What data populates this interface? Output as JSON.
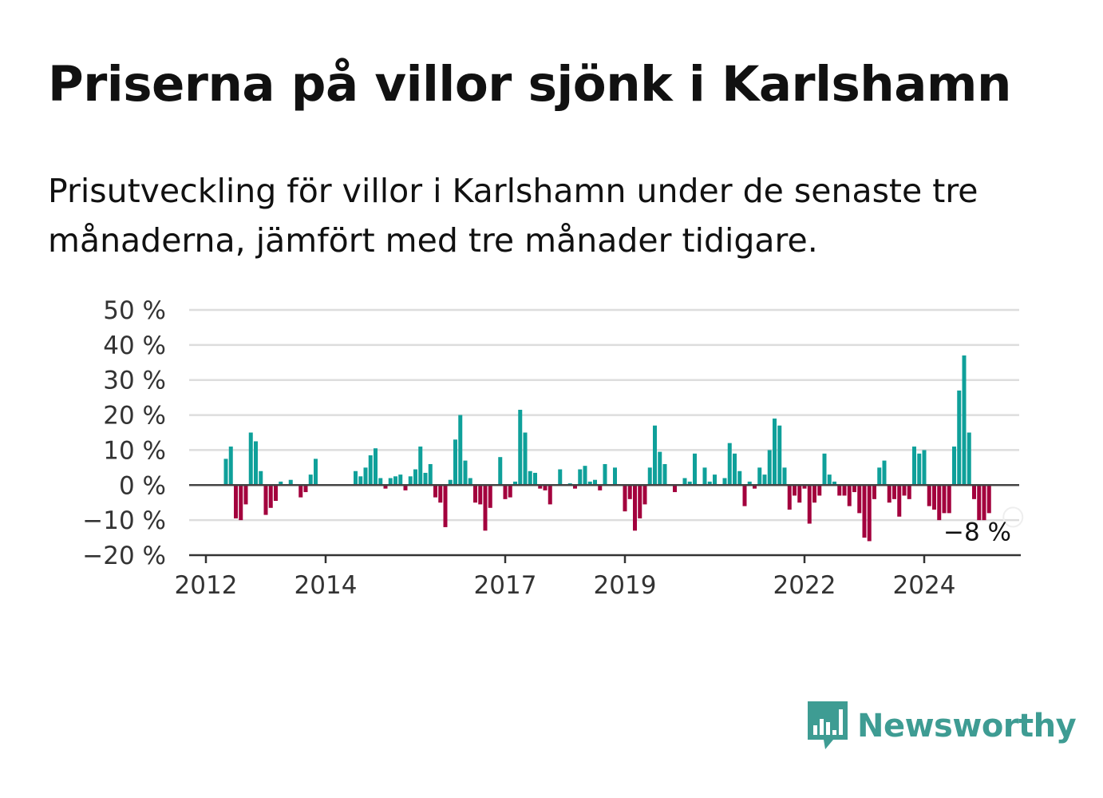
{
  "title": "Priserna på villor sjönk i Karlshamn",
  "subtitle": "Prisutveckling för villor i Karlshamn under de senaste tre månaderna, jämfört med tre månader tidigare.",
  "brand": {
    "name": "Newsworthy",
    "color": "#3e9c93"
  },
  "colors": {
    "positive": "#0fa09a",
    "negative": "#a3003d",
    "grid": "#dddddd",
    "axis": "#333333"
  },
  "chart_data": {
    "type": "bar",
    "title": "",
    "xlabel": "",
    "ylabel": "",
    "ylim": [
      -20,
      50
    ],
    "y_ticks": [
      "50 %",
      "40 %",
      "30 %",
      "20 %",
      "10 %",
      "0 %",
      "−10 %",
      "−20 %"
    ],
    "y_tick_values": [
      50,
      40,
      30,
      20,
      10,
      0,
      -10,
      -20
    ],
    "x_ticks": [
      "2012",
      "2014",
      "2017",
      "2019",
      "2022",
      "2024"
    ],
    "x_tick_dates": [
      "2012-01",
      "2014-01",
      "2017-01",
      "2019-01",
      "2022-01",
      "2024-01"
    ],
    "grid": true,
    "series": [
      {
        "values": [
          [
            "2012-05",
            7.5
          ],
          [
            "2012-06",
            11
          ],
          [
            "2012-07",
            -9.5
          ],
          [
            "2012-08",
            -10
          ],
          [
            "2012-09",
            -5.5
          ],
          [
            "2012-10",
            15
          ],
          [
            "2012-11",
            12.5
          ],
          [
            "2012-12",
            4
          ],
          [
            "2013-01",
            -8.5
          ],
          [
            "2013-02",
            -6.5
          ],
          [
            "2013-03",
            -4.5
          ],
          [
            "2013-04",
            1
          ],
          [
            "2013-06",
            1.5
          ],
          [
            "2013-08",
            -3.5
          ],
          [
            "2013-09",
            -2
          ],
          [
            "2013-10",
            3
          ],
          [
            "2013-11",
            7.5
          ],
          [
            "2014-07",
            4
          ],
          [
            "2014-08",
            2.5
          ],
          [
            "2014-09",
            5
          ],
          [
            "2014-10",
            8.5
          ],
          [
            "2014-11",
            10.5
          ],
          [
            "2014-12",
            2
          ],
          [
            "2015-01",
            -1
          ],
          [
            "2015-02",
            2
          ],
          [
            "2015-03",
            2.5
          ],
          [
            "2015-04",
            3
          ],
          [
            "2015-05",
            -1.5
          ],
          [
            "2015-06",
            2.5
          ],
          [
            "2015-07",
            4.5
          ],
          [
            "2015-08",
            11
          ],
          [
            "2015-09",
            3.5
          ],
          [
            "2015-10",
            6
          ],
          [
            "2015-11",
            -3.5
          ],
          [
            "2015-12",
            -5
          ],
          [
            "2016-01",
            -12
          ],
          [
            "2016-02",
            1.5
          ],
          [
            "2016-03",
            13
          ],
          [
            "2016-04",
            20
          ],
          [
            "2016-05",
            7
          ],
          [
            "2016-06",
            2
          ],
          [
            "2016-07",
            -5
          ],
          [
            "2016-08",
            -5.5
          ],
          [
            "2016-09",
            -13
          ],
          [
            "2016-10",
            -6.5
          ],
          [
            "2016-12",
            8
          ],
          [
            "2017-01",
            -4
          ],
          [
            "2017-02",
            -3.5
          ],
          [
            "2017-03",
            1
          ],
          [
            "2017-04",
            21.5
          ],
          [
            "2017-05",
            15
          ],
          [
            "2017-06",
            4
          ],
          [
            "2017-07",
            3.5
          ],
          [
            "2017-08",
            -1
          ],
          [
            "2017-09",
            -1.5
          ],
          [
            "2017-10",
            -5.5
          ],
          [
            "2017-12",
            4.5
          ],
          [
            "2018-02",
            0.5
          ],
          [
            "2018-03",
            -1
          ],
          [
            "2018-04",
            4.5
          ],
          [
            "2018-05",
            5.5
          ],
          [
            "2018-06",
            1
          ],
          [
            "2018-07",
            1.5
          ],
          [
            "2018-08",
            -1.5
          ],
          [
            "2018-09",
            6
          ],
          [
            "2018-11",
            5
          ],
          [
            "2019-01",
            -7.5
          ],
          [
            "2019-02",
            -4
          ],
          [
            "2019-03",
            -13
          ],
          [
            "2019-04",
            -9.5
          ],
          [
            "2019-05",
            -5.5
          ],
          [
            "2019-06",
            5
          ],
          [
            "2019-07",
            17
          ],
          [
            "2019-08",
            9.5
          ],
          [
            "2019-09",
            6
          ],
          [
            "2019-11",
            -2
          ],
          [
            "2020-01",
            2
          ],
          [
            "2020-02",
            1
          ],
          [
            "2020-03",
            9
          ],
          [
            "2020-05",
            5
          ],
          [
            "2020-06",
            1
          ],
          [
            "2020-07",
            3
          ],
          [
            "2020-09",
            2
          ],
          [
            "2020-10",
            12
          ],
          [
            "2020-11",
            9
          ],
          [
            "2020-12",
            4
          ],
          [
            "2021-01",
            -6
          ],
          [
            "2021-02",
            1
          ],
          [
            "2021-03",
            -1
          ],
          [
            "2021-04",
            5
          ],
          [
            "2021-05",
            3
          ],
          [
            "2021-06",
            10
          ],
          [
            "2021-07",
            19
          ],
          [
            "2021-08",
            17
          ],
          [
            "2021-09",
            5
          ],
          [
            "2021-10",
            -7
          ],
          [
            "2021-11",
            -3
          ],
          [
            "2021-12",
            -5
          ],
          [
            "2022-01",
            -1
          ],
          [
            "2022-02",
            -11
          ],
          [
            "2022-03",
            -5
          ],
          [
            "2022-04",
            -3
          ],
          [
            "2022-05",
            9
          ],
          [
            "2022-06",
            3
          ],
          [
            "2022-07",
            1
          ],
          [
            "2022-08",
            -3
          ],
          [
            "2022-09",
            -3
          ],
          [
            "2022-10",
            -6
          ],
          [
            "2022-11",
            -2
          ],
          [
            "2022-12",
            -8
          ],
          [
            "2023-01",
            -15
          ],
          [
            "2023-02",
            -16
          ],
          [
            "2023-03",
            -4
          ],
          [
            "2023-04",
            5
          ],
          [
            "2023-05",
            7
          ],
          [
            "2023-06",
            -5
          ],
          [
            "2023-07",
            -4
          ],
          [
            "2023-08",
            -9
          ],
          [
            "2023-09",
            -3
          ],
          [
            "2023-10",
            -4
          ],
          [
            "2023-11",
            11
          ],
          [
            "2023-12",
            9
          ],
          [
            "2024-01",
            10
          ],
          [
            "2024-02",
            -6
          ],
          [
            "2024-03",
            -7
          ],
          [
            "2024-04",
            -10
          ],
          [
            "2024-05",
            -8
          ],
          [
            "2024-06",
            -8
          ],
          [
            "2024-07",
            11
          ],
          [
            "2024-08",
            27
          ],
          [
            "2024-09",
            37
          ],
          [
            "2024-10",
            15
          ],
          [
            "2024-11",
            -4
          ],
          [
            "2024-12",
            -10
          ],
          [
            "2025-01",
            -10
          ],
          [
            "2025-02",
            -8
          ]
        ]
      }
    ],
    "annotation": {
      "label": "−8 %",
      "date": "2025-02",
      "value": -8
    }
  }
}
